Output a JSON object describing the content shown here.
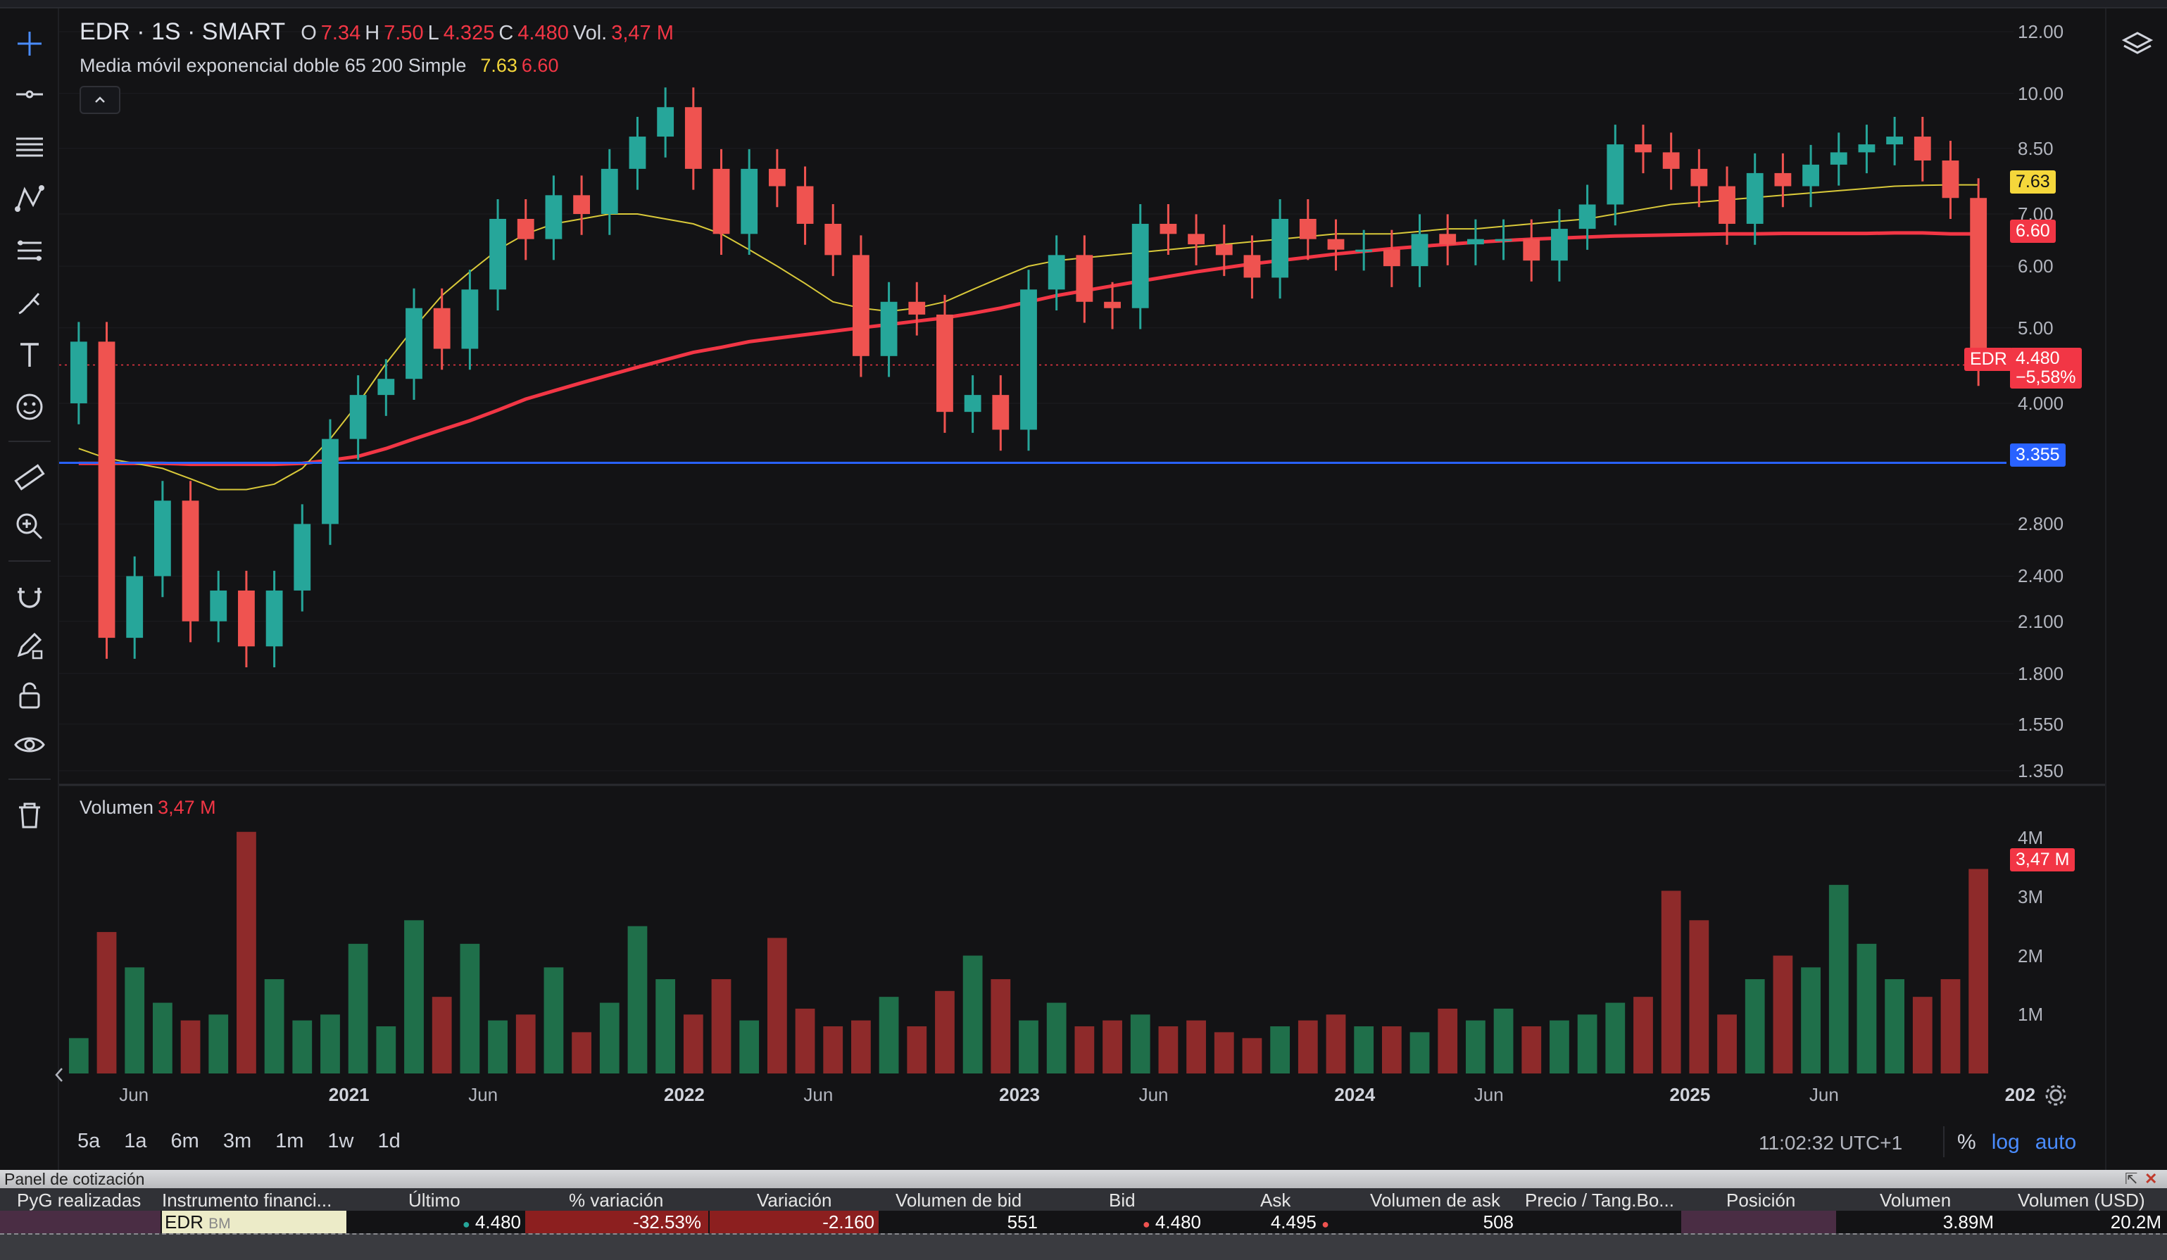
{
  "legend": {
    "symbol": "EDR · 1S · SMART",
    "open_label": "O",
    "open": "7.34",
    "high_label": "H",
    "high": "7.50",
    "low_label": "L",
    "low": "4.325",
    "close_label": "C",
    "close": "4.480",
    "vol_label": "Vol.",
    "vol": "3,47 M",
    "indicator": "Media móvil exponencial doble 65 200 Simple",
    "ema_fast": "7.63",
    "ema_slow": "6.60",
    "volume_label": "Volumen",
    "volume_value": "3,47 M"
  },
  "price_axis": [
    "12.00",
    "10.00",
    "8.50",
    "7.00",
    "6.00",
    "5.00",
    "4.000",
    "2.800",
    "2.400",
    "2.100",
    "1.800",
    "1.550",
    "1.350"
  ],
  "volume_axis": [
    "4M",
    "3M",
    "2M",
    "1M"
  ],
  "date_axis": [
    {
      "label": "Jun",
      "year": false
    },
    {
      "label": "2021",
      "year": true
    },
    {
      "label": "Jun",
      "year": false
    },
    {
      "label": "2022",
      "year": true
    },
    {
      "label": "Jun",
      "year": false
    },
    {
      "label": "2023",
      "year": true
    },
    {
      "label": "Jun",
      "year": false
    },
    {
      "label": "2024",
      "year": true
    },
    {
      "label": "Jun",
      "year": false
    },
    {
      "label": "2025",
      "year": true
    },
    {
      "label": "Jun",
      "year": false
    },
    {
      "label": "202",
      "year": true
    }
  ],
  "badges": {
    "ema_fast": "7.63",
    "ema_slow": "6.60",
    "symbol_tag": "EDR",
    "last_price": "4.480",
    "last_change": "−5,58%",
    "hline": "3.355",
    "volume": "3,47 M"
  },
  "ranges": [
    "5a",
    "1a",
    "6m",
    "3m",
    "1m",
    "1w",
    "1d"
  ],
  "clock": "11:02:32 UTC+1",
  "scale": {
    "pct": "%",
    "log": "log",
    "auto": "auto"
  },
  "quote_panel": {
    "title": "Panel de cotización",
    "headers": [
      "PyG realizadas",
      "Instrumento financi...",
      "Último",
      "% variación",
      "Variación",
      "Volumen de bid",
      "Bid",
      "Ask",
      "Volumen de ask",
      "Precio / Tang.Bo...",
      "Posición",
      "Volumen",
      "Volumen (USD)"
    ],
    "row": {
      "instrument": "EDR",
      "exchange": "BM",
      "last": "4.480",
      "pct_change": "-32.53%",
      "change": "-2.160",
      "bid_vol": "551",
      "bid": "4.480",
      "ask": "4.495",
      "ask_vol": "508",
      "volume": "3.89M",
      "volume_usd": "20.2M"
    }
  },
  "colors": {
    "up": "#26a69a",
    "down": "#ef5350",
    "ema_fast": "#e6d43a",
    "ema_slow": "#f23645",
    "hline": "#2962ff",
    "background": "#131315"
  },
  "chart_data": {
    "type": "candlestick",
    "title": "EDR · 1S · SMART",
    "scale": "log",
    "ylim": [
      1.3,
      12.5
    ],
    "x": [
      "2020-03",
      "2020-04",
      "2020-05",
      "2020-06",
      "2020-07",
      "2020-08",
      "2020-09",
      "2020-10",
      "2020-11",
      "2020-12",
      "2021-01",
      "2021-02",
      "2021-03",
      "2021-04",
      "2021-05",
      "2021-06",
      "2021-07",
      "2021-08",
      "2021-09",
      "2021-10",
      "2021-11",
      "2021-12",
      "2022-01",
      "2022-02",
      "2022-03",
      "2022-04",
      "2022-05",
      "2022-06",
      "2022-07",
      "2022-08",
      "2022-09",
      "2022-10",
      "2022-11",
      "2022-12",
      "2023-01",
      "2023-02",
      "2023-03",
      "2023-04",
      "2023-05",
      "2023-06",
      "2023-07",
      "2023-08",
      "2023-09",
      "2023-10",
      "2023-11",
      "2023-12",
      "2024-01",
      "2024-02",
      "2024-03",
      "2024-04",
      "2024-05",
      "2024-06",
      "2024-07",
      "2024-08",
      "2024-09",
      "2024-10",
      "2024-11",
      "2024-12",
      "2025-01",
      "2025-02",
      "2025-03",
      "2025-04",
      "2025-05",
      "2025-06",
      "2025-07",
      "2025-08",
      "2025-09",
      "2025-10",
      "2025-11"
    ],
    "close": [
      4.8,
      2.0,
      2.4,
      3.0,
      2.1,
      2.3,
      1.95,
      2.3,
      2.8,
      3.6,
      4.1,
      4.3,
      5.3,
      4.7,
      5.6,
      6.9,
      6.5,
      7.4,
      7.0,
      8.0,
      8.8,
      9.6,
      8.0,
      6.6,
      8.0,
      7.6,
      6.8,
      6.2,
      4.6,
      5.4,
      5.2,
      3.9,
      4.1,
      3.7,
      5.6,
      6.2,
      5.4,
      5.3,
      6.8,
      6.6,
      6.4,
      6.2,
      5.8,
      6.9,
      6.5,
      6.3,
      6.3,
      6.0,
      6.6,
      6.4,
      6.5,
      6.5,
      6.1,
      6.7,
      7.2,
      8.6,
      8.4,
      8.0,
      7.6,
      6.8,
      7.9,
      7.6,
      8.1,
      8.4,
      8.6,
      8.8,
      8.2,
      7.34,
      4.48
    ],
    "series": [
      {
        "name": "EMA 65",
        "values": [
          3.5,
          3.4,
          3.35,
          3.3,
          3.2,
          3.1,
          3.1,
          3.15,
          3.3,
          3.6,
          4.0,
          4.5,
          5.0,
          5.5,
          5.9,
          6.3,
          6.6,
          6.8,
          6.9,
          7.0,
          7.0,
          6.9,
          6.8,
          6.6,
          6.3,
          6.0,
          5.7,
          5.4,
          5.3,
          5.25,
          5.3,
          5.4,
          5.6,
          5.8,
          6.0,
          6.1,
          6.15,
          6.2,
          6.25,
          6.3,
          6.35,
          6.4,
          6.45,
          6.5,
          6.55,
          6.6,
          6.6,
          6.6,
          6.65,
          6.7,
          6.7,
          6.75,
          6.8,
          6.85,
          6.9,
          7.0,
          7.1,
          7.2,
          7.25,
          7.3,
          7.35,
          7.4,
          7.45,
          7.5,
          7.55,
          7.6,
          7.62,
          7.63,
          7.63
        ]
      },
      {
        "name": "EMA 200",
        "values": [
          3.35,
          3.35,
          3.35,
          3.35,
          3.34,
          3.34,
          3.34,
          3.34,
          3.35,
          3.38,
          3.42,
          3.5,
          3.6,
          3.7,
          3.8,
          3.92,
          4.05,
          4.15,
          4.25,
          4.35,
          4.45,
          4.55,
          4.65,
          4.72,
          4.8,
          4.85,
          4.9,
          4.95,
          5.0,
          5.05,
          5.1,
          5.15,
          5.22,
          5.3,
          5.4,
          5.5,
          5.58,
          5.66,
          5.74,
          5.82,
          5.9,
          5.97,
          6.04,
          6.1,
          6.16,
          6.22,
          6.27,
          6.32,
          6.36,
          6.4,
          6.44,
          6.47,
          6.5,
          6.52,
          6.54,
          6.56,
          6.57,
          6.58,
          6.59,
          6.6,
          6.6,
          6.61,
          6.61,
          6.61,
          6.61,
          6.62,
          6.62,
          6.6,
          6.6
        ]
      }
    ],
    "hline": 3.355,
    "volume_unit": "M",
    "volume": [
      0.6,
      2.4,
      1.8,
      1.2,
      0.9,
      1.0,
      4.1,
      1.6,
      0.9,
      1.0,
      2.2,
      0.8,
      2.6,
      1.3,
      2.2,
      0.9,
      1.0,
      1.8,
      0.7,
      1.2,
      2.5,
      1.6,
      1.0,
      1.6,
      0.9,
      2.3,
      1.1,
      0.8,
      0.9,
      1.3,
      0.8,
      1.4,
      2.0,
      1.6,
      0.9,
      1.2,
      0.8,
      0.9,
      1.0,
      0.8,
      0.9,
      0.7,
      0.6,
      0.8,
      0.9,
      1.0,
      0.8,
      0.8,
      0.7,
      1.1,
      0.9,
      1.1,
      0.8,
      0.9,
      1.0,
      1.2,
      1.3,
      3.1,
      2.6,
      1.0,
      1.6,
      2.0,
      1.8,
      3.2,
      2.2,
      1.6,
      1.3,
      1.6,
      3.47
    ]
  }
}
